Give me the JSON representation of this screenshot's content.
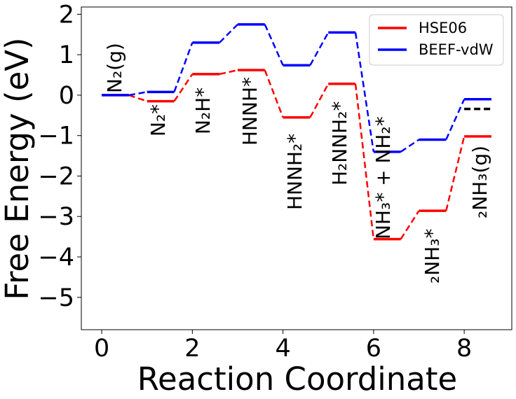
{
  "chart_data": {
    "type": "line",
    "title": "",
    "xlabel": "Reaction Coordinate",
    "ylabel": "Free Energy (eV)",
    "xlim": [
      -0.45,
      9.05
    ],
    "ylim": [
      -5.8,
      2.18
    ],
    "xticks": [
      "0",
      "2",
      "4",
      "6",
      "8"
    ],
    "xtick_values": [
      0,
      2,
      4,
      6,
      8
    ],
    "yticks": [
      "2",
      "1",
      "0",
      "−1",
      "−2",
      "−3",
      "−4",
      "−5"
    ],
    "ytick_values": [
      2,
      1,
      0,
      -1,
      -2,
      -3,
      -4,
      -5
    ],
    "legend_position": "top-right",
    "plateau_width": 0.6,
    "series": [
      {
        "name": "HSE06",
        "color": "#ff0000",
        "x": [
          0,
          1,
          2,
          3,
          4,
          5,
          6,
          7,
          8
        ],
        "values": [
          0.0,
          -0.15,
          0.52,
          0.62,
          -0.55,
          0.28,
          -3.56,
          -2.86,
          -1.02
        ]
      },
      {
        "name": "BEEF-vdW",
        "color": "#0000ff",
        "x": [
          0,
          1,
          2,
          3,
          4,
          5,
          6,
          7,
          8
        ],
        "values": [
          0.0,
          0.08,
          1.3,
          1.75,
          0.74,
          1.55,
          -1.4,
          -1.1,
          -0.1
        ]
      }
    ],
    "extra_segment": {
      "x": 8,
      "value": -0.34,
      "color": "#000000"
    },
    "state_labels": [
      {
        "x": 0,
        "text": "N₂(g)"
      },
      {
        "x": 1,
        "text": "N₂*"
      },
      {
        "x": 2,
        "text": "N₂H*"
      },
      {
        "x": 3,
        "text": "HNNH*"
      },
      {
        "x": 4,
        "text": "HNNH₂*"
      },
      {
        "x": 5,
        "text": "H₂NNH₂*"
      },
      {
        "x": 6,
        "text": "NH₃* + NH₂*"
      },
      {
        "x": 7,
        "text": "₂NH₃*"
      },
      {
        "x": 8,
        "text": "₂NH₃(g)"
      }
    ]
  }
}
